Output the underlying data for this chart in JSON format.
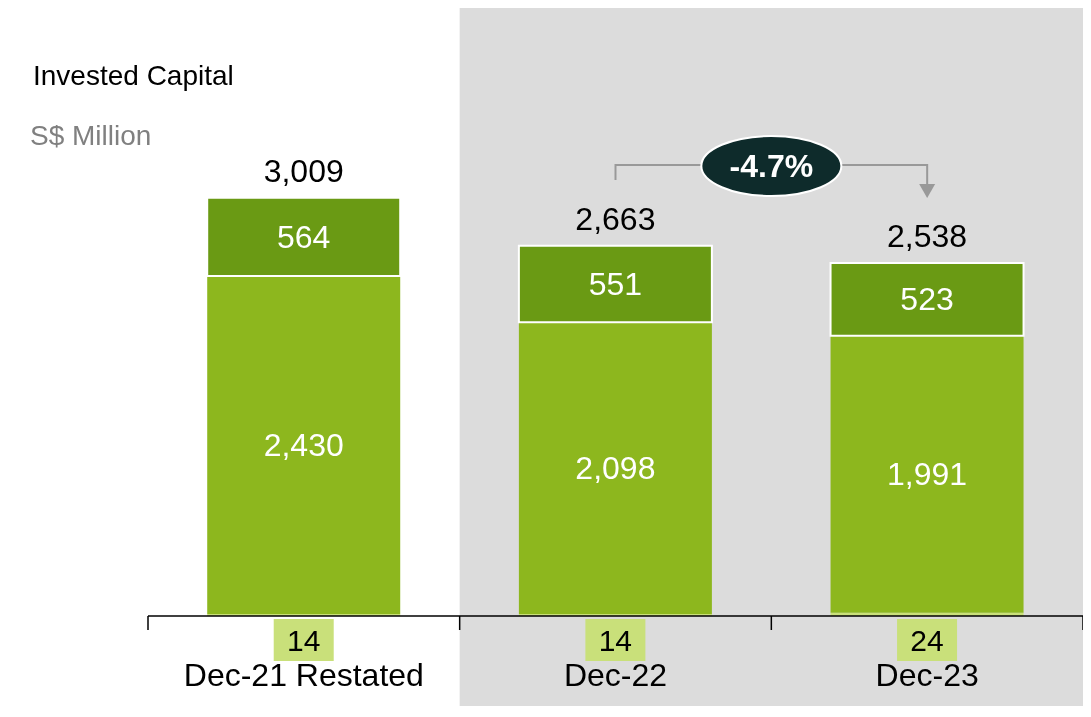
{
  "chart_data": {
    "type": "bar",
    "title": "Invested Capital",
    "subtitle": "S$ Million",
    "categories": [
      "Dec-21 Restated",
      "Dec-22",
      "Dec-23"
    ],
    "series": [
      {
        "color": "#c9e07a",
        "values": [
          14,
          14,
          24
        ],
        "value_labels": [
          "14",
          "14",
          "24"
        ]
      },
      {
        "color": "#8db71e",
        "values": [
          2430,
          2098,
          1991
        ],
        "value_labels": [
          "2,430",
          "2,098",
          "1,991"
        ]
      },
      {
        "color": "#6a9a14",
        "values": [
          564,
          551,
          523
        ],
        "value_labels": [
          "564",
          "551",
          "523"
        ]
      }
    ],
    "stacked": true,
    "totals": [
      "3,009",
      "2,663",
      "2,538"
    ],
    "bands": [
      {
        "axis": "x",
        "from": "Dec-22",
        "to": "Dec-23",
        "color": "#dcdcdc"
      }
    ],
    "annotations": [
      "-4.7%"
    ]
  }
}
